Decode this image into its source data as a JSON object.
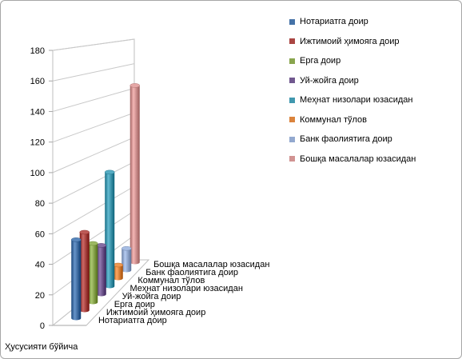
{
  "chart_data": {
    "type": "bar",
    "subtype": "3d-cylinder",
    "xlabel": "Ҳусусияти бўйича",
    "ylim": [
      0,
      180
    ],
    "yticks": [
      0,
      20,
      40,
      60,
      80,
      100,
      120,
      140,
      160,
      180
    ],
    "grid": true,
    "legend_position": "right",
    "series": [
      {
        "name": "Нотариатга доир",
        "value": 52,
        "color": "#4572A7"
      },
      {
        "name": "Ижтимоий ҳимояга доир",
        "value": 53,
        "color": "#AA4643"
      },
      {
        "name": "Ерга доир",
        "value": 41,
        "color": "#89A54E"
      },
      {
        "name": "Уй-жойга доир",
        "value": 35,
        "color": "#71588F"
      },
      {
        "name": "Меҳнат низолари юзасидан",
        "value": 84,
        "color": "#4198AF"
      },
      {
        "name": "Коммунал тўлов",
        "value": 10,
        "color": "#DB843D"
      },
      {
        "name": "Банк фаолиятига доир",
        "value": 17,
        "color": "#93A9CF"
      },
      {
        "name": "Бошқа масалалар юзасидан",
        "value": 142,
        "color": "#D19392"
      }
    ]
  }
}
